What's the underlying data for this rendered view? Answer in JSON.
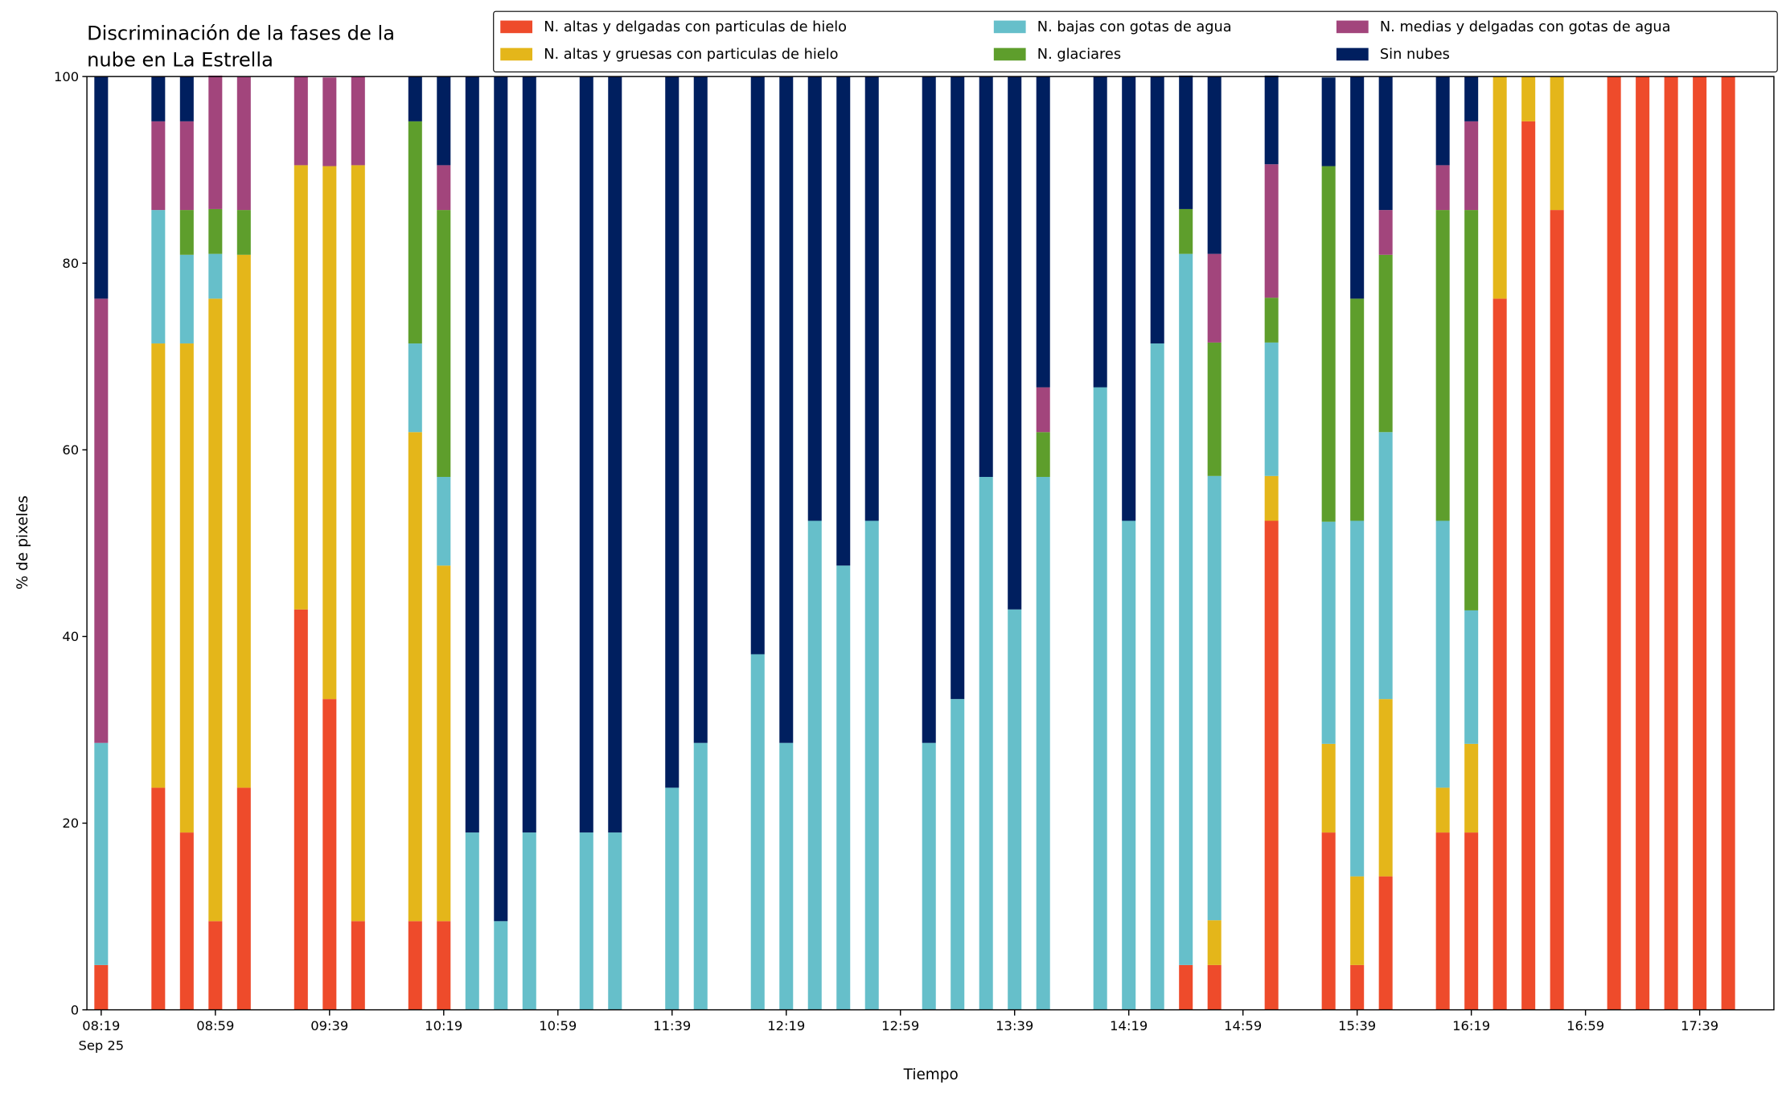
{
  "chart_data": {
    "type": "stacked_bar",
    "title": "Discriminación de la fases de la nube en La Estrella",
    "title_lines": [
      "Discriminación de la fases de la",
      "nube en La Estrella"
    ],
    "xlabel": "Tiempo",
    "ylabel": "% de pixeles",
    "x_date_label": "Sep 25",
    "x": [
      "08:19",
      "08:39",
      "08:49",
      "08:59",
      "09:09",
      "09:29",
      "09:39",
      "09:49",
      "10:09",
      "10:19",
      "10:29",
      "10:39",
      "10:49",
      "11:09",
      "11:19",
      "11:39",
      "11:49",
      "12:09",
      "12:19",
      "12:29",
      "12:39",
      "12:49",
      "13:09",
      "13:19",
      "13:29",
      "13:39",
      "13:49",
      "14:09",
      "14:19",
      "14:29",
      "14:39",
      "14:49",
      "15:09",
      "15:29",
      "15:39",
      "15:49",
      "16:09",
      "16:19",
      "16:29",
      "16:39",
      "16:49",
      "17:09",
      "17:19",
      "17:29",
      "17:39",
      "17:49"
    ],
    "series": [
      {
        "name": "N. altas y delgadas con particulas de hielo",
        "color": "#ee4b2b",
        "values": [
          4.8,
          23.8,
          19.0,
          9.5,
          23.8,
          42.9,
          33.3,
          9.5,
          9.5,
          9.5,
          0,
          0,
          0,
          0,
          0,
          0,
          0,
          0,
          0,
          0,
          0,
          0,
          0,
          0,
          0,
          0,
          0,
          0,
          0,
          0,
          4.8,
          4.8,
          52.4,
          19.0,
          4.8,
          14.3,
          19.0,
          19.0,
          76.2,
          95.2,
          85.7,
          100,
          100,
          100,
          100,
          100
        ]
      },
      {
        "name": "N. altas y gruesas con particulas de hielo",
        "color": "#e4b61a",
        "values": [
          0,
          47.6,
          52.4,
          66.7,
          57.1,
          47.6,
          57.1,
          81.0,
          52.4,
          38.1,
          0,
          0,
          0,
          0,
          0,
          0,
          0,
          0,
          0,
          0,
          0,
          0,
          0,
          0,
          0,
          0,
          0,
          0,
          0,
          0,
          0,
          4.8,
          4.8,
          9.5,
          9.5,
          19.0,
          4.8,
          9.5,
          23.8,
          4.8,
          14.3,
          0,
          0,
          0,
          0,
          0
        ]
      },
      {
        "name": "N. bajas con gotas de agua",
        "color": "#66bfca",
        "values": [
          23.8,
          14.3,
          9.5,
          4.8,
          0,
          0,
          0,
          0,
          9.5,
          9.5,
          19.0,
          9.5,
          19.0,
          19.0,
          19.0,
          23.8,
          28.6,
          38.1,
          28.6,
          52.4,
          47.6,
          52.4,
          28.6,
          33.3,
          57.1,
          42.9,
          57.1,
          66.7,
          52.4,
          71.4,
          76.2,
          47.6,
          14.3,
          23.8,
          38.1,
          28.6,
          28.6,
          14.3,
          0,
          0,
          0,
          0,
          0,
          0,
          0,
          0
        ]
      },
      {
        "name": "N. glaciares",
        "color": "#5e9e2c",
        "values": [
          0,
          0,
          4.8,
          4.8,
          4.8,
          0,
          0,
          0,
          23.8,
          28.6,
          0,
          0,
          0,
          0,
          0,
          0,
          0,
          0,
          0,
          0,
          0,
          0,
          0,
          0,
          0,
          0,
          4.8,
          0,
          0,
          0,
          4.8,
          14.3,
          4.8,
          38.1,
          23.8,
          19.0,
          33.3,
          42.9,
          0,
          0,
          0,
          0,
          0,
          0,
          0,
          0
        ]
      },
      {
        "name": "N. medias y delgadas con gotas de agua",
        "color": "#a2457c",
        "values": [
          47.6,
          9.5,
          9.5,
          14.3,
          14.3,
          9.5,
          9.5,
          9.5,
          0,
          4.8,
          0,
          0,
          0,
          0,
          0,
          0,
          0,
          0,
          0,
          0,
          0,
          0,
          0,
          0,
          0,
          0,
          4.8,
          0,
          0,
          0,
          0,
          9.5,
          14.3,
          0,
          0,
          4.8,
          4.8,
          9.5,
          0,
          0,
          0,
          0,
          0,
          0,
          0,
          0
        ]
      },
      {
        "name": "Sin nubes",
        "color": "#001f5f",
        "values": [
          23.8,
          4.8,
          4.8,
          0,
          0,
          0,
          0,
          0,
          4.8,
          9.5,
          81.0,
          90.5,
          81.0,
          81.0,
          81.0,
          76.2,
          71.4,
          61.9,
          71.4,
          47.6,
          52.4,
          47.6,
          71.4,
          66.7,
          42.9,
          57.1,
          33.3,
          33.3,
          47.6,
          28.6,
          14.3,
          19.0,
          9.5,
          9.5,
          23.8,
          14.3,
          9.5,
          4.8,
          0,
          0,
          0,
          0,
          0,
          0,
          0,
          0
        ]
      }
    ],
    "xlim": [
      "08:14",
      "18:05"
    ],
    "xticks": [
      "08:19",
      "08:59",
      "09:39",
      "10:19",
      "10:59",
      "11:39",
      "12:19",
      "12:59",
      "13:39",
      "14:19",
      "14:59",
      "15:39",
      "16:19",
      "16:59",
      "17:39"
    ],
    "ylim": [
      0,
      100
    ],
    "yticks": [
      0,
      20,
      40,
      60,
      80,
      100
    ],
    "grid": false,
    "legend": "top right"
  }
}
